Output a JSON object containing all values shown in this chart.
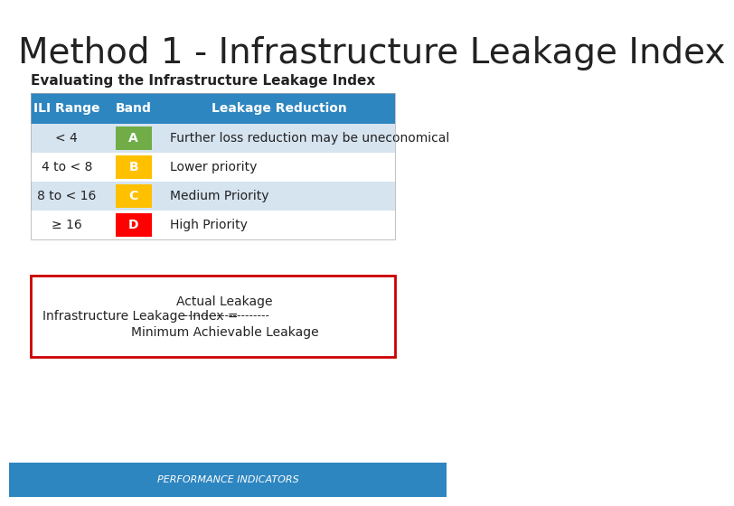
{
  "title": "Method 1 - Infrastructure Leakage Index",
  "subtitle": "Evaluating the Infrastructure Leakage Index",
  "background_color": "#ffffff",
  "title_fontsize": 28,
  "subtitle_fontsize": 11,
  "table_header": [
    "ILI Range",
    "Band",
    "Leakage Reduction"
  ],
  "table_header_bg": "#2E86C1",
  "table_header_color": "#ffffff",
  "table_rows": [
    {
      "ili": "< 4",
      "band": "A",
      "desc": "Further loss reduction may be uneconomical",
      "band_color": "#70AD47",
      "row_bg": "#D6E4F0"
    },
    {
      "ili": "4 to < 8",
      "band": "B",
      "desc": "Lower priority",
      "band_color": "#FFC000",
      "row_bg": "#ffffff"
    },
    {
      "ili": "8 to < 16",
      "band": "C",
      "desc": "Medium Priority",
      "band_color": "#FFC000",
      "row_bg": "#D6E4F0"
    },
    {
      "ili": "≥ 16",
      "band": "D",
      "desc": "High Priority",
      "band_color": "#FF0000",
      "row_bg": "#ffffff"
    }
  ],
  "formula_box_border": "#CC0000",
  "formula_left": "Infrastructure Leakage Index =",
  "formula_numerator": "Actual Leakage",
  "formula_dashes": "----------------------",
  "formula_denominator": "Minimum Achievable Leakage",
  "footer_bg": "#2E86C1",
  "footer_text": "PERFORMANCE INDICATORS",
  "footer_text_color": "#ffffff"
}
